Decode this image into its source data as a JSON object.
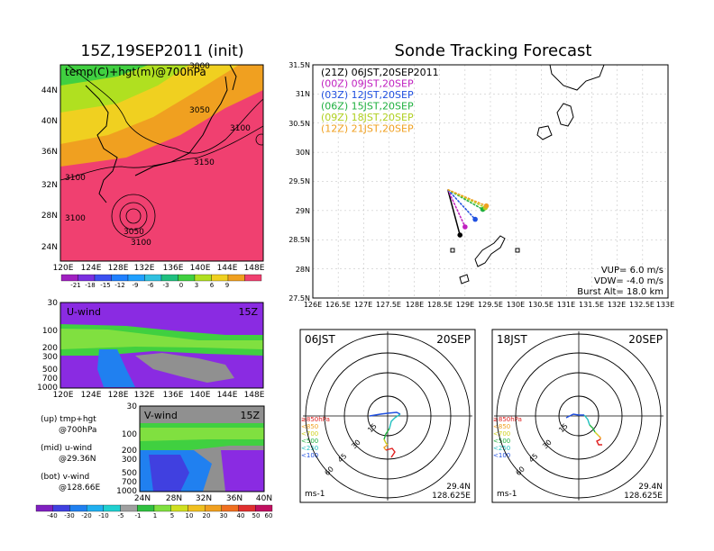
{
  "init_title": "15Z,19SEP2011 (init)",
  "main_title": "Sonde Tracking Forecast",
  "upper_map": {
    "overlay_label": "temp(C)+hgt(m)@700hPa",
    "contour_labels": [
      "3000",
      "3050",
      "3100",
      "3100",
      "3150",
      "3100",
      "3050",
      "3100"
    ],
    "lat_ticks": [
      "44N",
      "40N",
      "36N",
      "32N",
      "28N",
      "24N"
    ],
    "lon_ticks": [
      "120E",
      "124E",
      "128E",
      "132E",
      "136E",
      "140E",
      "144E",
      "148E"
    ],
    "colorbar_labels": [
      "-21",
      "-18",
      "-15",
      "-12",
      "-9",
      "-6",
      "-3",
      "0",
      "3",
      "6",
      "9"
    ],
    "colorbar_colors": [
      "#a020c0",
      "#7a30e0",
      "#3c50f0",
      "#2080ff",
      "#20a0ff",
      "#30c0e0",
      "#20c080",
      "#40d040",
      "#b0e020",
      "#f0d020",
      "#f0a020",
      "#f04070"
    ]
  },
  "u_wind": {
    "label": "U-wind",
    "time": "15Z",
    "p_ticks": [
      "30",
      "100",
      "200",
      "300",
      "500",
      "700",
      "1000"
    ],
    "lon_ticks": [
      "120E",
      "124E",
      "128E",
      "132E",
      "136E",
      "140E",
      "144E",
      "148E"
    ]
  },
  "v_wind": {
    "label": "V-wind",
    "time": "15Z",
    "p_ticks": [
      "30",
      "100",
      "200",
      "300",
      "500",
      "700",
      "1000"
    ],
    "lat_ticks": [
      "24N",
      "28N",
      "32N",
      "36N",
      "40N"
    ]
  },
  "notes": [
    "(up) tmp+hgt",
    "@700hPa",
    "(mid) u-wind",
    "@29.36N",
    "(bot) v-wind",
    "@128.66E"
  ],
  "wind_colorbar": {
    "labels": [
      "-40",
      "-30",
      "-20",
      "-10",
      "-5",
      "-1",
      "1",
      "5",
      "10",
      "20",
      "30",
      "40",
      "50",
      "60"
    ],
    "colors": [
      "#8020c0",
      "#4040e0",
      "#2080f0",
      "#20b0f0",
      "#20d0d0",
      "#a0a0a0",
      "#30c040",
      "#80e040",
      "#d0e020",
      "#f0c020",
      "#f0a020",
      "#f07020",
      "#e03030",
      "#c01060"
    ]
  },
  "track_map": {
    "legend": [
      {
        "text": "(21Z)  06JST,20SEP2011",
        "color": "#000000"
      },
      {
        "text": "(00Z)  09JST,20SEP",
        "color": "#c020c0"
      },
      {
        "text": "(03Z)  12JST,20SEP",
        "color": "#2050e0"
      },
      {
        "text": "(06Z)  15JST,20SEP",
        "color": "#20b040"
      },
      {
        "text": "(09Z)  18JST,20SEP",
        "color": "#b0d020"
      },
      {
        "text": "(12Z)  21JST,20SEP",
        "color": "#f0a020"
      }
    ],
    "lat_ticks": [
      "31.5N",
      "31N",
      "30.5N",
      "30N",
      "29.5N",
      "29N",
      "28.5N",
      "28N",
      "27.5N"
    ],
    "lon_ticks": [
      "126E",
      "126.5E",
      "127E",
      "127.5E",
      "128E",
      "128.5E",
      "129E",
      "129.5E",
      "130E",
      "130.5E",
      "131E",
      "131.5E",
      "132E",
      "132.5E",
      "133E"
    ],
    "params": [
      "VUP=  6.0  m/s",
      "VDW= -4.0  m/s",
      "Burst Alt=  18.0  km"
    ]
  },
  "hodo_left": {
    "time": "06JST",
    "date": "20SEP",
    "legend": [
      {
        "text": "≥850hPa",
        "color": "#e02020"
      },
      {
        "text": "<850",
        "color": "#f0a020"
      },
      {
        "text": "<700",
        "color": "#d0d020"
      },
      {
        "text": "<500",
        "color": "#20b040"
      },
      {
        "text": "<250",
        "color": "#20c0c0"
      },
      {
        "text": "<100",
        "color": "#2050e0"
      }
    ],
    "ring_labels": [
      "15",
      "30",
      "45",
      "60"
    ],
    "unit": "ms-1",
    "lat": "29.4N",
    "lon": "128.625E"
  },
  "hodo_right": {
    "time": "18JST",
    "date": "20SEP",
    "legend": [
      {
        "text": "≥850hPa",
        "color": "#e02020"
      },
      {
        "text": "<850",
        "color": "#f0a020"
      },
      {
        "text": "<700",
        "color": "#d0d020"
      },
      {
        "text": "<500",
        "color": "#20b040"
      },
      {
        "text": "<250",
        "color": "#20c0c0"
      },
      {
        "text": "<100",
        "color": "#2050e0"
      }
    ],
    "ring_labels": [
      "15",
      "30",
      "45",
      "60"
    ],
    "unit": "ms-1",
    "lat": "29.4N",
    "lon": "128.625E"
  },
  "chart_data": [
    {
      "type": "line",
      "description_source": "trajectory panel",
      "xlim": [
        126,
        133
      ],
      "ylim": [
        27.5,
        31.5
      ],
      "series": [
        {
          "name": "(21Z)  06JST,20SEP2011",
          "points": [
            [
              128.66,
              29.36
            ],
            [
              128.9,
              28.58
            ]
          ]
        },
        {
          "name": "(00Z)  09JST,20SEP",
          "points": [
            [
              128.66,
              29.36
            ],
            [
              129.0,
              28.72
            ]
          ]
        },
        {
          "name": "(03Z)  12JST,20SEP",
          "points": [
            [
              128.66,
              29.36
            ],
            [
              129.2,
              28.85
            ]
          ]
        },
        {
          "name": "(06Z)  15JST,20SEP",
          "points": [
            [
              128.66,
              29.36
            ],
            [
              129.35,
              29.02
            ]
          ]
        },
        {
          "name": "(09Z)  18JST,20SEP",
          "points": [
            [
              128.66,
              29.36
            ],
            [
              129.4,
              29.05
            ]
          ]
        },
        {
          "name": "(12Z)  21JST,20SEP",
          "points": [
            [
              128.66,
              29.36
            ],
            [
              129.42,
              29.08
            ]
          ]
        }
      ]
    }
  ]
}
